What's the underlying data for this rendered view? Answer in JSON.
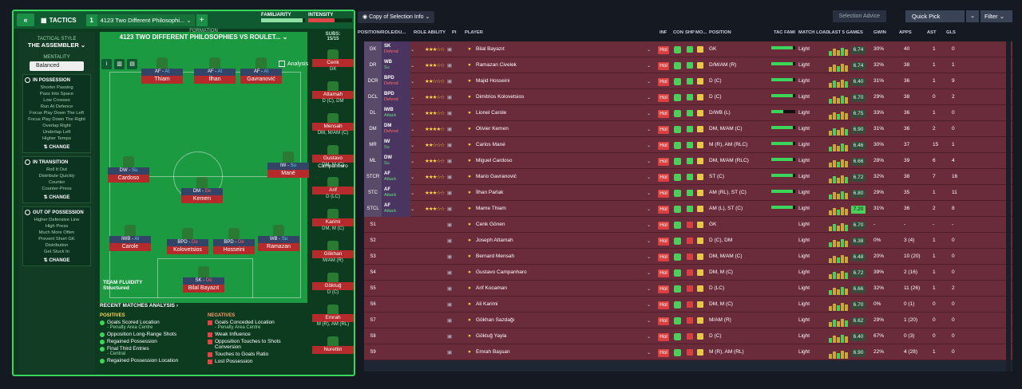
{
  "tactics": {
    "collapse": "«",
    "label": "TACTICS",
    "slot": "1",
    "name": "4123 Two Different Philosophi...",
    "add": "+"
  },
  "familiarity": {
    "label": "FAMILIARITY",
    "value": 0.95
  },
  "intensity": {
    "label": "INTENSITY",
    "value": 0.6
  },
  "side": {
    "style_title": "TACTICAL STYLE",
    "style_value": "THE ASSEMBLER ⌄",
    "mentality_title": "MENTALITY",
    "mentality_value": "Balanced",
    "possession": {
      "title": "IN POSSESSION",
      "items": [
        "Shorter Passing",
        "Pass Into Space",
        "Low Crosses",
        "Run At Defence",
        "Focus Play Down The Left",
        "Focus Play Down The Right",
        "Overlap Right",
        "Underlap Left",
        "Higher Tempo"
      ],
      "change": "CHANGE"
    },
    "transition": {
      "title": "IN TRANSITION",
      "items": [
        "Roll It Out",
        "Distribute Quickly",
        "Counter",
        "Counter-Press"
      ],
      "change": "CHANGE"
    },
    "out_possession": {
      "title": "OUT OF POSSESSION",
      "items": [
        "Higher Defensive Line",
        "High Press",
        "Much More Often",
        "Prevent Short GK",
        "Distribution",
        "Get Stuck In"
      ],
      "change": "CHANGE"
    }
  },
  "formation": {
    "label": "FORMATION",
    "name": "4123 TWO DIFFERENT PHILOSOPHIES VS ROULET... ⌄"
  },
  "analysis": "Analysis",
  "fluidity": {
    "title": "TEAM FLUIDITY",
    "value": "Structured"
  },
  "players_on_pitch": [
    {
      "role": "AF",
      "duty": "At",
      "name": "Thiam"
    },
    {
      "role": "AF",
      "duty": "At",
      "name": "İlhan"
    },
    {
      "role": "AF",
      "duty": "At",
      "name": "Gavranović"
    },
    {
      "role": "DW",
      "duty": "Su",
      "name": "Cardoso"
    },
    {
      "role": "IW",
      "duty": "Su",
      "name": "Mané"
    },
    {
      "role": "DM",
      "duty": "De",
      "name": "Kemen"
    },
    {
      "role": "IWB",
      "duty": "At",
      "name": "Carole"
    },
    {
      "role": "BPD",
      "duty": "De",
      "name": "Kolovetsios"
    },
    {
      "role": "BPD",
      "duty": "De",
      "name": "Hosseini"
    },
    {
      "role": "WB",
      "duty": "Su",
      "name": "Ramazan"
    },
    {
      "role": "SK",
      "duty": "De",
      "name": "Bilal Bayazıt"
    }
  ],
  "subs": {
    "label": "SUBS:",
    "count": "15/15",
    "players": [
      {
        "name": "Cenk",
        "pos": "GK"
      },
      {
        "name": "Attamah",
        "pos": "D (C), DM"
      },
      {
        "name": "Mensah",
        "pos": "DM, M/AM (C)"
      },
      {
        "name": "Gustavo Campanharo",
        "pos": "DM, M (C)"
      },
      {
        "name": "Arif",
        "pos": "D (LC)"
      },
      {
        "name": "Karimi",
        "pos": "DM, M (C)"
      },
      {
        "name": "Gökhan",
        "pos": "M/AM (R)"
      },
      {
        "name": "Göktuğ",
        "pos": "D (C)"
      },
      {
        "name": "Emrah",
        "pos": "M (R), AM (RL)"
      },
      {
        "name": "Nurettin",
        "pos": ""
      }
    ]
  },
  "recent": {
    "title": "RECENT MATCHES ANALYSIS ›",
    "pos_label": "POSITIVES",
    "neg_label": "NEGATIVES",
    "positives": [
      {
        "t": "Goals Scored Location",
        "s": "- Penalty Area Centre"
      },
      {
        "t": "Opposition Long-Range Shots",
        "s": ""
      },
      {
        "t": "Regained Possession",
        "s": ""
      },
      {
        "t": "Final Third Entries",
        "s": "- Central"
      },
      {
        "t": "Regained Possession Location",
        "s": ""
      }
    ],
    "negatives": [
      {
        "t": "Goals Conceded Location",
        "s": "- Penalty Area Centre"
      },
      {
        "t": "Weak Influence",
        "s": ""
      },
      {
        "t": "Opposition Touches to Shots Conversion",
        "s": ""
      },
      {
        "t": "Touches to Goals Ratio",
        "s": ""
      },
      {
        "t": "Lost Possession",
        "s": ""
      }
    ]
  },
  "toolbar": {
    "copy": "Copy of Selection Info ⌄",
    "selection_advice": "Selection Advice",
    "quick_pick": "Quick Pick",
    "filter": "Filter ⌄"
  },
  "columns": {
    "pos": "POSITION/ROLE/DU...",
    "ability": "ROLE ABILITY",
    "pi": "PI",
    "player": "PLAYER",
    "inf": "INF",
    "con": "CON",
    "shp": "SHP",
    "mo": "MO...",
    "position": "POSITION",
    "tac": "TAC FAMI",
    "load": "MATCH LOAD",
    "last5": "LAST 5 GAMES",
    "gwin": "GWIN",
    "apps": "APPS",
    "ast": "AST",
    "gls": "GLS"
  },
  "rows": [
    {
      "pos": "GK",
      "role": "SK",
      "duty": "Defend",
      "stars": "★★★☆☆",
      "name": "Bilal Bayazıt",
      "position": "GK",
      "fam": 0.9,
      "load": "Light",
      "rating": "6.74",
      "gwin": "30%",
      "apps": "40",
      "ast": "1",
      "gls": "0"
    },
    {
      "pos": "DR",
      "role": "WB",
      "duty": "Su",
      "stars": "★★★☆☆",
      "name": "Ramazan Civelek",
      "position": "D/M/AM (R)",
      "fam": 0.9,
      "load": "Light",
      "rating": "6.74",
      "gwin": "32%",
      "apps": "38",
      "ast": "1",
      "gls": "1"
    },
    {
      "pos": "DCR",
      "role": "BPD",
      "duty": "Defend",
      "stars": "★★☆☆☆",
      "name": "Majid Hosseini",
      "position": "D (C)",
      "fam": 0.9,
      "load": "Light",
      "rating": "6.40",
      "gwin": "31%",
      "apps": "36",
      "ast": "1",
      "gls": "9"
    },
    {
      "pos": "DCL",
      "role": "BPD",
      "duty": "Defend",
      "stars": "★★★☆☆",
      "name": "Dimitrios Kolovetsios",
      "position": "D (C)",
      "fam": 0.9,
      "load": "Light",
      "rating": "6.70",
      "gwin": "29%",
      "apps": "38",
      "ast": "0",
      "gls": "2"
    },
    {
      "pos": "DL",
      "role": "IWB",
      "duty": "Attack",
      "stars": "★★★☆☆",
      "name": "Lionel Carole",
      "position": "D/WB (L)",
      "fam": 0.5,
      "load": "Light",
      "rating": "6.75",
      "gwin": "33%",
      "apps": "36",
      "ast": "1",
      "gls": "0"
    },
    {
      "pos": "DM",
      "role": "DM",
      "duty": "Defend",
      "stars": "★★★★☆",
      "name": "Olivier Kemen",
      "position": "DM, M/AM (C)",
      "fam": 0.9,
      "load": "Light",
      "rating": "6.90",
      "gwin": "31%",
      "apps": "36",
      "ast": "2",
      "gls": "0"
    },
    {
      "pos": "MR",
      "role": "IW",
      "duty": "Su",
      "stars": "★★☆☆☆",
      "name": "Carlos Mané",
      "position": "M (R), AM (RLC)",
      "fam": 0.9,
      "load": "Light",
      "rating": "6.46",
      "gwin": "30%",
      "apps": "37",
      "ast": "15",
      "gls": "1"
    },
    {
      "pos": "ML",
      "role": "DW",
      "duty": "Su",
      "stars": "★★★☆☆",
      "name": "Miguel Cardoso",
      "position": "DM, M/AM (RLC)",
      "fam": 0.9,
      "load": "Light",
      "rating": "6.66",
      "gwin": "28%",
      "apps": "39",
      "ast": "6",
      "gls": "4"
    },
    {
      "pos": "STCR",
      "role": "AF",
      "duty": "Attack",
      "stars": "★★★☆☆",
      "name": "Mario Gavranović",
      "position": "ST (C)",
      "fam": 0.9,
      "load": "Light",
      "rating": "6.72",
      "gwin": "32%",
      "apps": "38",
      "ast": "7",
      "gls": "16"
    },
    {
      "pos": "STC",
      "role": "AF",
      "duty": "Attack",
      "stars": "★★★☆☆",
      "name": "İlhan Parlak",
      "position": "AM (RL), ST (C)",
      "fam": 0.9,
      "load": "Light",
      "rating": "6.80",
      "gwin": "29%",
      "apps": "35",
      "ast": "1",
      "gls": "11"
    },
    {
      "pos": "STCL",
      "role": "AF",
      "duty": "Attack",
      "stars": "★★★☆☆",
      "name": "Mame Thiam",
      "position": "AM (L), ST (C)",
      "fam": 0.9,
      "load": "Light",
      "rating": "7.20",
      "gwin": "31%",
      "apps": "36",
      "ast": "2",
      "gls": "8"
    },
    {
      "pos": "S1",
      "role": "",
      "duty": "",
      "stars": "",
      "name": "Cenk Gönen",
      "position": "GK",
      "fam": 0,
      "load": "Light",
      "rating": "6.70",
      "gwin": "-",
      "apps": "-",
      "ast": "-",
      "gls": "-"
    },
    {
      "pos": "S2",
      "role": "",
      "duty": "",
      "stars": "",
      "name": "Joseph Attamah",
      "position": "D (C), DM",
      "fam": 0,
      "load": "Light",
      "rating": "6.38",
      "gwin": "0%",
      "apps": "3 (4)",
      "ast": "1",
      "gls": "0"
    },
    {
      "pos": "S3",
      "role": "",
      "duty": "",
      "stars": "",
      "name": "Bernard Mensah",
      "position": "DM, M/AM (C)",
      "fam": 0,
      "load": "Light",
      "rating": "6.48",
      "gwin": "20%",
      "apps": "10 (20)",
      "ast": "1",
      "gls": "0"
    },
    {
      "pos": "S4",
      "role": "",
      "duty": "",
      "stars": "",
      "name": "Gustavo Campanharo",
      "position": "DM, M (C)",
      "fam": 0,
      "load": "Light",
      "rating": "6.72",
      "gwin": "39%",
      "apps": "2 (16)",
      "ast": "1",
      "gls": "0"
    },
    {
      "pos": "S5",
      "role": "",
      "duty": "",
      "stars": "",
      "name": "Arif Kocaman",
      "position": "D (LC)",
      "fam": 0,
      "load": "Light",
      "rating": "6.66",
      "gwin": "32%",
      "apps": "11 (26)",
      "ast": "1",
      "gls": "2"
    },
    {
      "pos": "S6",
      "role": "",
      "duty": "",
      "stars": "",
      "name": "Ali Karimi",
      "position": "DM, M (C)",
      "fam": 0,
      "load": "Light",
      "rating": "6.70",
      "gwin": "0%",
      "apps": "0 (1)",
      "ast": "0",
      "gls": "0"
    },
    {
      "pos": "S7",
      "role": "",
      "duty": "",
      "stars": "",
      "name": "Gökhan Sazdağı",
      "position": "M/AM (R)",
      "fam": 0,
      "load": "Light",
      "rating": "6.62",
      "gwin": "29%",
      "apps": "1 (20)",
      "ast": "0",
      "gls": "0"
    },
    {
      "pos": "S8",
      "role": "",
      "duty": "",
      "stars": "",
      "name": "Göktuğ Yayla",
      "position": "D (C)",
      "fam": 0,
      "load": "Light",
      "rating": "6.40",
      "gwin": "67%",
      "apps": "0 (3)",
      "ast": "0",
      "gls": "0"
    },
    {
      "pos": "S9",
      "role": "",
      "duty": "",
      "stars": "",
      "name": "Emrah Başsan",
      "position": "M (R), AM (RL)",
      "fam": 0,
      "load": "Light",
      "rating": "6.90",
      "gwin": "22%",
      "apps": "4 (28)",
      "ast": "1",
      "gls": "0"
    }
  ]
}
